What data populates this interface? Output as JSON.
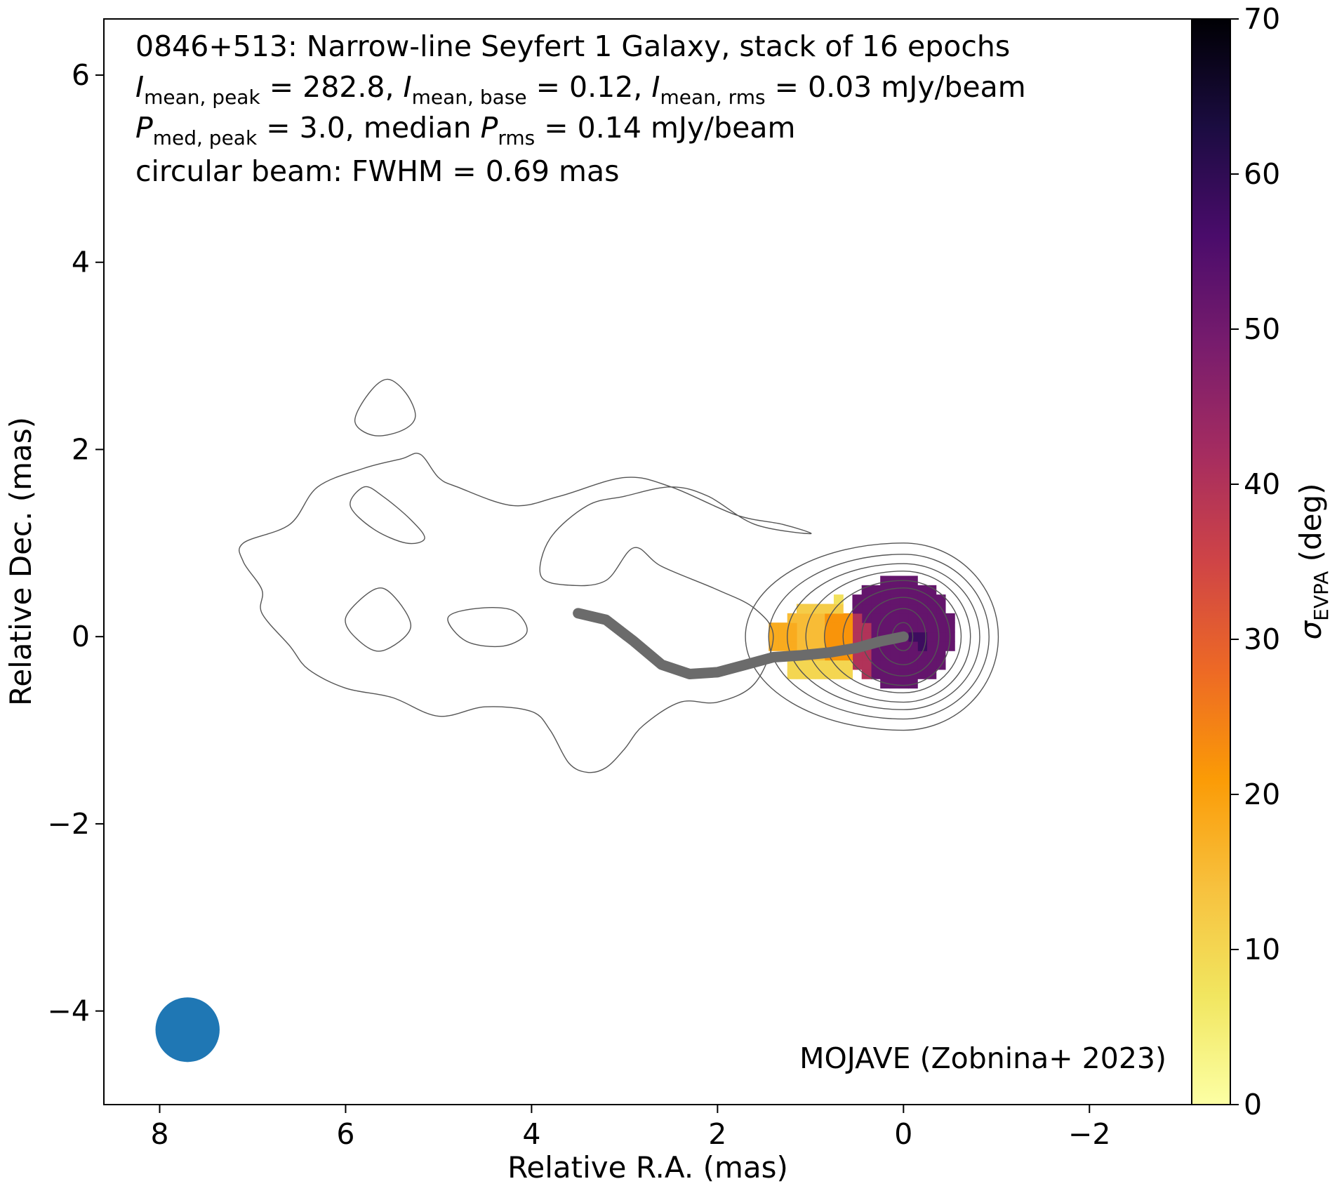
{
  "chart_data": {
    "type": "heatmap",
    "title_lines": [
      "0846+513: Narrow-line Seyfert 1 Galaxy, stack of 16 epochs",
      "I_mean,peak = 282.8, I_mean,base = 0.12, I_mean,rms = 0.03 mJy/beam",
      "P_med,peak = 3.0, median P_rms = 0.14 mJy/beam",
      "circular beam: FWHM = 0.69 mas"
    ],
    "annotation_parts": {
      "line1": "0846+513: Narrow-line Seyfert 1 Galaxy, stack of 16 epochs",
      "l2_I1": "I",
      "l2_sub1": "mean, peak",
      "l2_val1": " = 282.8, ",
      "l2_I2": "I",
      "l2_sub2": "mean, base",
      "l2_val2": " = 0.12, ",
      "l2_I3": "I",
      "l2_sub3": "mean, rms",
      "l2_val3": " = 0.03 mJy/beam",
      "l3_P1": "P",
      "l3_sub1": "med, peak",
      "l3_val1": " = 3.0, median ",
      "l3_P2": "P",
      "l3_sub2": "rms",
      "l3_val2": " = 0.14 mJy/beam",
      "line4": "circular beam: FWHM = 0.69 mas"
    },
    "credit": "MOJAVE (Zobnina+ 2023)",
    "xlabel": "Relative R.A. (mas)",
    "ylabel": "Relative Dec. (mas)",
    "xlim": [
      8.6,
      -3.1
    ],
    "ylim": [
      -5.0,
      6.6
    ],
    "xticks": [
      8,
      6,
      4,
      2,
      0,
      -2
    ],
    "yticks": [
      -4,
      -2,
      0,
      2,
      4,
      6
    ],
    "colorbar": {
      "label_symbol": "σ",
      "label_sub": "EVPA",
      "label_unit": " (deg)",
      "range": [
        0,
        70
      ],
      "ticks": [
        0,
        10,
        20,
        30,
        40,
        50,
        60,
        70
      ],
      "colormap": "inferno_r"
    },
    "beam": {
      "x": 7.7,
      "y": -4.2,
      "fwhm_mas": 0.69,
      "color": "#1f77b4"
    },
    "ridge_line": {
      "color": "#6b6b6b",
      "points": [
        [
          3.5,
          0.25
        ],
        [
          3.2,
          0.18
        ],
        [
          2.9,
          -0.05
        ],
        [
          2.6,
          -0.3
        ],
        [
          2.3,
          -0.4
        ],
        [
          2.0,
          -0.38
        ],
        [
          1.7,
          -0.3
        ],
        [
          1.4,
          -0.22
        ],
        [
          1.1,
          -0.2
        ],
        [
          0.8,
          -0.17
        ],
        [
          0.5,
          -0.12
        ],
        [
          0.25,
          -0.05
        ],
        [
          0.0,
          0.0
        ]
      ]
    },
    "sigma_evpa_blobs": [
      {
        "cx": 0.05,
        "cy": 0.05,
        "rx": 0.58,
        "ry": 0.6,
        "value": 52
      },
      {
        "cx": -0.15,
        "cy": 0.0,
        "rx": 0.22,
        "ry": 0.25,
        "value": 58
      },
      {
        "cx": 0.42,
        "cy": -0.05,
        "rx": 0.18,
        "ry": 0.38,
        "value": 40
      },
      {
        "cx": 0.72,
        "cy": -0.05,
        "rx": 0.22,
        "ry": 0.32,
        "value": 22
      },
      {
        "cx": 1.0,
        "cy": -0.02,
        "rx": 0.35,
        "ry": 0.32,
        "value": 15
      },
      {
        "cx": 1.25,
        "cy": 0.0,
        "rx": 0.18,
        "ry": 0.2,
        "value": 18
      },
      {
        "cx": 0.9,
        "cy": -0.35,
        "rx": 0.4,
        "ry": 0.1,
        "value": 10
      },
      {
        "cx": 0.9,
        "cy": 0.3,
        "rx": 0.25,
        "ry": 0.1,
        "value": 12
      },
      {
        "cx": -0.55,
        "cy": -0.45,
        "rx": 0.05,
        "ry": 0.05,
        "value": 18
      },
      {
        "cx": 0.7,
        "cy": 0.42,
        "rx": 0.05,
        "ry": 0.05,
        "value": 8
      }
    ],
    "contour_core": {
      "cx": 0.0,
      "cy": 0.0,
      "levels": [
        {
          "rx_left": 0.12,
          "rx_right": 0.1,
          "ry": 0.15
        },
        {
          "rx_left": 0.28,
          "rx_right": 0.24,
          "ry": 0.3
        },
        {
          "rx_left": 0.45,
          "rx_right": 0.38,
          "ry": 0.42
        },
        {
          "rx_left": 0.65,
          "rx_right": 0.5,
          "ry": 0.52
        },
        {
          "rx_left": 0.85,
          "rx_right": 0.62,
          "ry": 0.6
        },
        {
          "rx_left": 1.05,
          "rx_right": 0.72,
          "ry": 0.7
        },
        {
          "rx_left": 1.25,
          "rx_right": 0.82,
          "ry": 0.78
        },
        {
          "rx_left": 1.45,
          "rx_right": 0.92,
          "ry": 0.88
        },
        {
          "rx_left": 1.7,
          "rx_right": 1.02,
          "ry": 1.0
        }
      ]
    },
    "contour_outer": [
      [
        [
          1.0,
          1.1
        ],
        [
          1.6,
          1.2
        ],
        [
          2.1,
          1.5
        ],
        [
          2.5,
          1.6
        ],
        [
          3.0,
          1.5
        ],
        [
          3.4,
          1.4
        ],
        [
          3.8,
          1.05
        ],
        [
          3.9,
          0.65
        ],
        [
          3.6,
          0.55
        ],
        [
          3.2,
          0.6
        ],
        [
          2.9,
          0.95
        ],
        [
          2.6,
          0.75
        ],
        [
          2.0,
          0.5
        ],
        [
          1.6,
          0.3
        ],
        [
          1.4,
          0.0
        ],
        [
          1.6,
          -0.5
        ],
        [
          2.0,
          -0.7
        ],
        [
          2.4,
          -0.7
        ],
        [
          2.8,
          -0.95
        ],
        [
          3.0,
          -1.2
        ],
        [
          3.2,
          -1.4
        ],
        [
          3.4,
          -1.45
        ],
        [
          3.6,
          -1.35
        ],
        [
          3.8,
          -1.0
        ],
        [
          4.0,
          -0.8
        ],
        [
          4.5,
          -0.75
        ],
        [
          5.0,
          -0.85
        ],
        [
          5.5,
          -0.65
        ],
        [
          6.0,
          -0.55
        ],
        [
          6.4,
          -0.35
        ],
        [
          6.6,
          -0.1
        ],
        [
          6.9,
          0.25
        ],
        [
          6.9,
          0.5
        ],
        [
          7.1,
          0.8
        ],
        [
          7.1,
          1.0
        ],
        [
          6.6,
          1.2
        ],
        [
          6.3,
          1.6
        ],
        [
          5.8,
          1.8
        ],
        [
          5.4,
          1.9
        ],
        [
          5.2,
          1.95
        ],
        [
          5.0,
          1.7
        ],
        [
          4.8,
          1.6
        ],
        [
          4.2,
          1.4
        ],
        [
          3.7,
          1.5
        ],
        [
          3.0,
          1.7
        ],
        [
          2.5,
          1.6
        ],
        [
          1.8,
          1.3
        ],
        [
          1.3,
          1.2
        ]
      ],
      [
        [
          5.9,
          2.3
        ],
        [
          5.75,
          2.6
        ],
        [
          5.55,
          2.75
        ],
        [
          5.35,
          2.6
        ],
        [
          5.25,
          2.35
        ],
        [
          5.4,
          2.2
        ],
        [
          5.7,
          2.15
        ]
      ],
      [
        [
          5.95,
          1.4
        ],
        [
          5.8,
          1.6
        ],
        [
          5.6,
          1.5
        ],
        [
          5.3,
          1.25
        ],
        [
          5.15,
          1.05
        ],
        [
          5.35,
          1.0
        ],
        [
          5.7,
          1.15
        ]
      ],
      [
        [
          6.0,
          0.2
        ],
        [
          5.7,
          0.5
        ],
        [
          5.5,
          0.45
        ],
        [
          5.3,
          0.1
        ],
        [
          5.6,
          -0.15
        ],
        [
          5.85,
          -0.05
        ]
      ],
      [
        [
          4.9,
          0.2
        ],
        [
          4.6,
          0.3
        ],
        [
          4.2,
          0.28
        ],
        [
          4.05,
          0.05
        ],
        [
          4.3,
          -0.1
        ],
        [
          4.7,
          -0.05
        ]
      ]
    ]
  }
}
